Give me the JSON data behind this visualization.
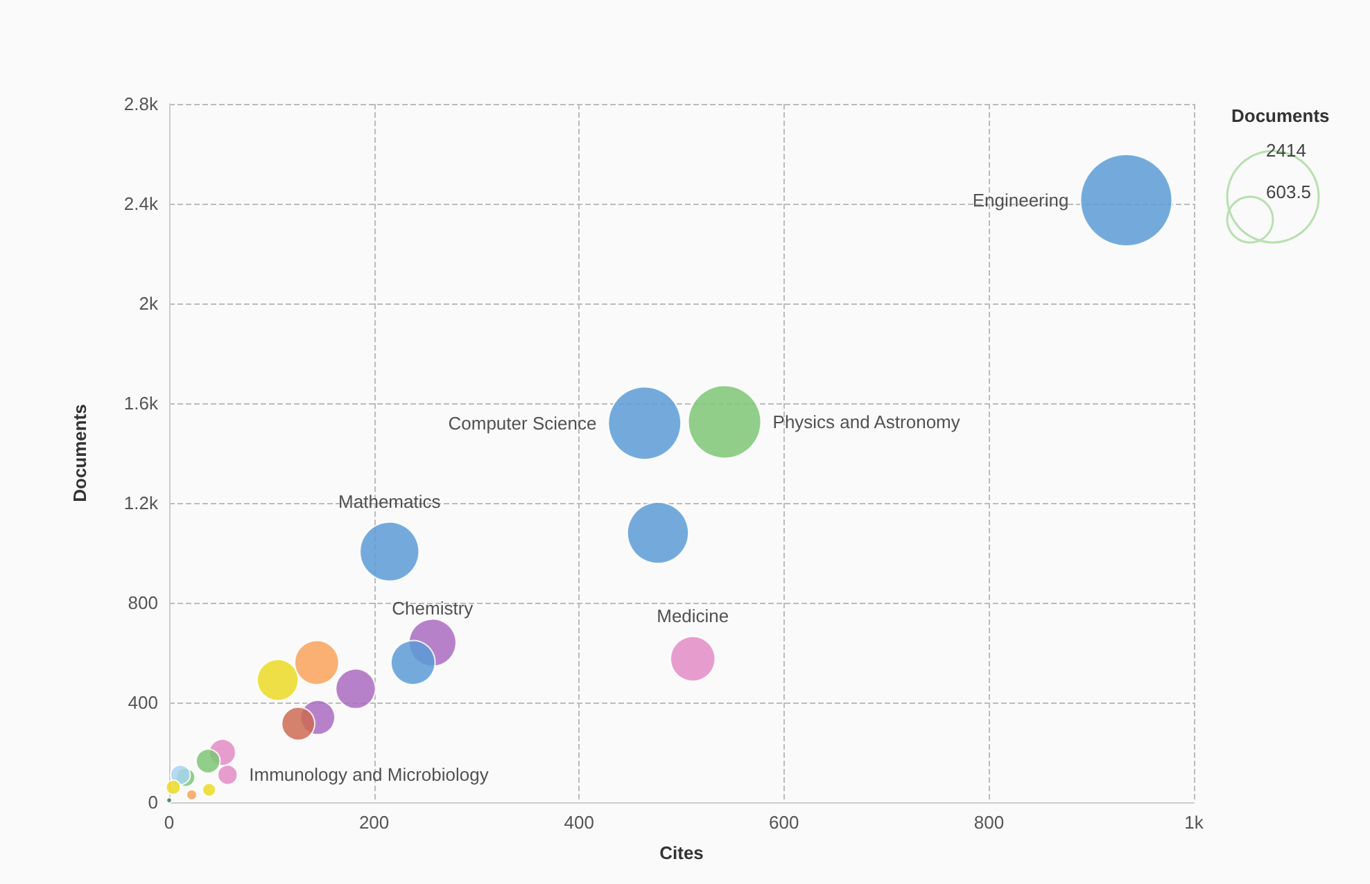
{
  "chart_data": {
    "type": "bubble",
    "xlabel": "Cites",
    "ylabel": "Documents",
    "legend_title": "Documents",
    "legend": "right",
    "grid": true,
    "xlim": [
      0,
      1000
    ],
    "xticks": [
      0,
      200,
      400,
      600,
      800,
      {
        "value": 1000,
        "label": "1k"
      }
    ],
    "ylim": [
      0,
      2800
    ],
    "yticks": [
      0,
      400,
      800,
      {
        "value": 1200,
        "label": "1.2k"
      },
      {
        "value": 1600,
        "label": "1.6k"
      },
      {
        "value": 2000,
        "label": "2k"
      },
      {
        "value": 2400,
        "label": "2.4k"
      },
      {
        "value": 2800,
        "label": "2.8k"
      }
    ],
    "size_legend": [
      2414,
      603.5
    ],
    "series": [
      {
        "name": "Engineering",
        "color": "#5b9bd5",
        "x": [
          934
        ],
        "values": [
          2414
        ],
        "sizes": [
          2414
        ]
      },
      {
        "name": "Computer Science",
        "color": "#5b9bd5",
        "x": [
          464
        ],
        "values": [
          1520
        ],
        "sizes": [
          1520
        ]
      },
      {
        "name": "Physics and Astronomy",
        "color": "#7cc576",
        "x": [
          542
        ],
        "values": [
          1525
        ],
        "sizes": [
          1525
        ]
      },
      {
        "color": "#5b9bd5",
        "x": [
          477
        ],
        "values": [
          1080
        ],
        "sizes": [
          1080
        ]
      },
      {
        "name": "Mathematics",
        "color": "#5b9bd5",
        "x": [
          215
        ],
        "values": [
          1005
        ],
        "sizes": [
          1005
        ]
      },
      {
        "name": "Chemistry",
        "color": "#a96bbf",
        "x": [
          257
        ],
        "values": [
          640
        ],
        "sizes": [
          640
        ]
      },
      {
        "color": "#5b9bd5",
        "x": [
          238
        ],
        "values": [
          560
        ],
        "sizes": [
          560
        ]
      },
      {
        "name": "Medicine",
        "color": "#e38bc6",
        "x": [
          511
        ],
        "values": [
          575
        ],
        "sizes": [
          575
        ]
      },
      {
        "color": "#f9a15a",
        "x": [
          144
        ],
        "values": [
          560
        ],
        "sizes": [
          560
        ]
      },
      {
        "color": "#ecd926",
        "x": [
          106
        ],
        "values": [
          490
        ],
        "sizes": [
          490
        ]
      },
      {
        "color": "#a96bbf",
        "x": [
          182,
          145
        ],
        "values": [
          455,
          340
        ],
        "sizes": [
          455,
          340
        ]
      },
      {
        "color": "#cc6b55",
        "x": [
          126
        ],
        "values": [
          315
        ],
        "sizes": [
          315
        ]
      },
      {
        "name": "Immunology and Microbiology",
        "color": "#e38bc6",
        "x": [
          57
        ],
        "values": [
          110
        ],
        "sizes": [
          110
        ]
      },
      {
        "color": "#e38bc6",
        "x": [
          52
        ],
        "values": [
          200
        ],
        "sizes": [
          200
        ]
      },
      {
        "color": "#7cc576",
        "x": [
          38,
          16
        ],
        "values": [
          165,
          100
        ],
        "sizes": [
          165,
          100
        ]
      },
      {
        "color": "#a8d4ee",
        "x": [
          11
        ],
        "values": [
          110
        ],
        "sizes": [
          110
        ]
      },
      {
        "color": "#ecd926",
        "x": [
          39,
          4
        ],
        "values": [
          50,
          60
        ],
        "sizes": [
          50,
          60
        ]
      },
      {
        "color": "#f9a15a",
        "x": [
          22
        ],
        "values": [
          30
        ],
        "sizes": [
          30
        ]
      },
      {
        "color": "#3a7a55",
        "x": [
          0
        ],
        "values": [
          8
        ],
        "sizes": [
          8
        ]
      }
    ]
  }
}
